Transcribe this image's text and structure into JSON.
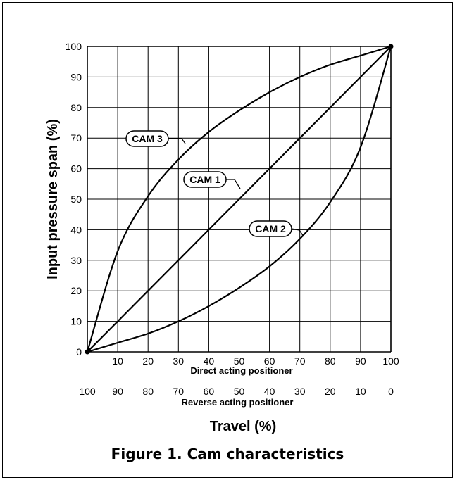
{
  "figure_caption": "Figure 1.  Cam characteristics",
  "chart_data": {
    "type": "line",
    "ylabel": "Input pressure span (%)",
    "xlabel": "Travel (%)",
    "x_ticks_direct": [
      "10",
      "20",
      "30",
      "40",
      "50",
      "60",
      "70",
      "80",
      "90",
      "100"
    ],
    "x_ticks_reverse": [
      "100",
      "90",
      "80",
      "70",
      "60",
      "50",
      "40",
      "30",
      "20",
      "10",
      "0"
    ],
    "y_ticks": [
      "0",
      "10",
      "20",
      "30",
      "40",
      "50",
      "60",
      "70",
      "80",
      "90",
      "100"
    ],
    "direct_label": "Direct acting positioner",
    "reverse_label": "Reverse acting positioner",
    "xlim": [
      0,
      100
    ],
    "ylim": [
      0,
      100
    ],
    "grid": true,
    "series": [
      {
        "name": "CAM 1",
        "x": [
          0,
          10,
          20,
          30,
          40,
          50,
          60,
          70,
          80,
          90,
          100
        ],
        "y": [
          0,
          10,
          20,
          30,
          40,
          50,
          60,
          70,
          80,
          90,
          100
        ]
      },
      {
        "name": "CAM 2",
        "x": [
          0,
          10,
          20,
          30,
          40,
          50,
          60,
          70,
          80,
          90,
          100
        ],
        "y": [
          0,
          3,
          6,
          10,
          15,
          21,
          28,
          37,
          49,
          67,
          100
        ]
      },
      {
        "name": "CAM 3",
        "x": [
          0,
          10,
          20,
          30,
          40,
          50,
          60,
          70,
          80,
          90,
          100
        ],
        "y": [
          0,
          33,
          51,
          63,
          72,
          79,
          85,
          90,
          94,
          97,
          100
        ]
      }
    ]
  }
}
